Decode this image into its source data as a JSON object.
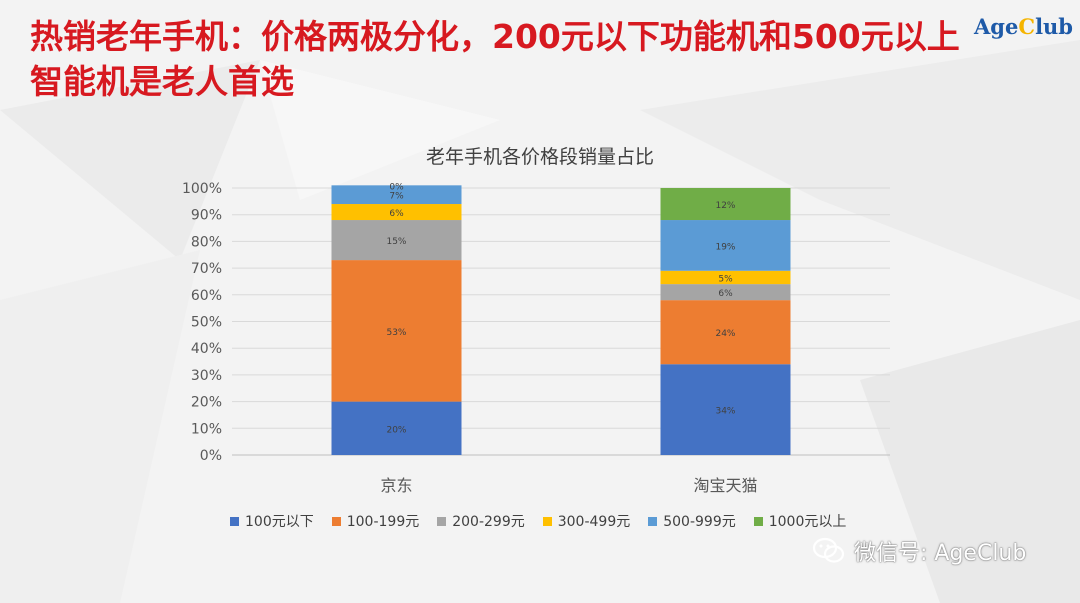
{
  "header": {
    "title": "热销老年手机：价格两极分化，200元以下功能机和500元以上智能机是老人首选",
    "logo_prefix": "Age",
    "logo_c": "C",
    "logo_suffix": "lub"
  },
  "watermark": {
    "text": "微信号: AgeClub",
    "icon": "wechat-icon"
  },
  "colors": {
    "s1": "#4472c4",
    "s2": "#ed7d31",
    "s3": "#a5a5a5",
    "s4": "#ffc000",
    "s5": "#5b9bd5",
    "s6": "#70ad47"
  },
  "chart_data": {
    "type": "bar",
    "stacked": true,
    "title": "老年手机各价格段销量占比",
    "categories": [
      "京东",
      "淘宝天猫"
    ],
    "series": [
      {
        "name": "100元以下",
        "values": [
          20,
          34
        ],
        "labels": [
          "20%",
          "34%"
        ]
      },
      {
        "name": "100-199元",
        "values": [
          53,
          24
        ],
        "labels": [
          "53%",
          "24%"
        ]
      },
      {
        "name": "200-299元",
        "values": [
          15,
          6
        ],
        "labels": [
          "15%",
          "6%"
        ]
      },
      {
        "name": "300-499元",
        "values": [
          6,
          5
        ],
        "labels": [
          "6%",
          "5%"
        ]
      },
      {
        "name": "500-999元",
        "values": [
          7,
          19
        ],
        "labels": [
          "7%",
          "19%"
        ]
      },
      {
        "name": "1000元以上",
        "values": [
          0,
          12
        ],
        "labels": [
          "0%",
          "12%"
        ]
      }
    ],
    "yticks": [
      "0%",
      "10%",
      "20%",
      "30%",
      "40%",
      "50%",
      "60%",
      "70%",
      "80%",
      "90%",
      "100%"
    ],
    "ylim": [
      0,
      100
    ],
    "grid": true,
    "legend": "bottom"
  }
}
